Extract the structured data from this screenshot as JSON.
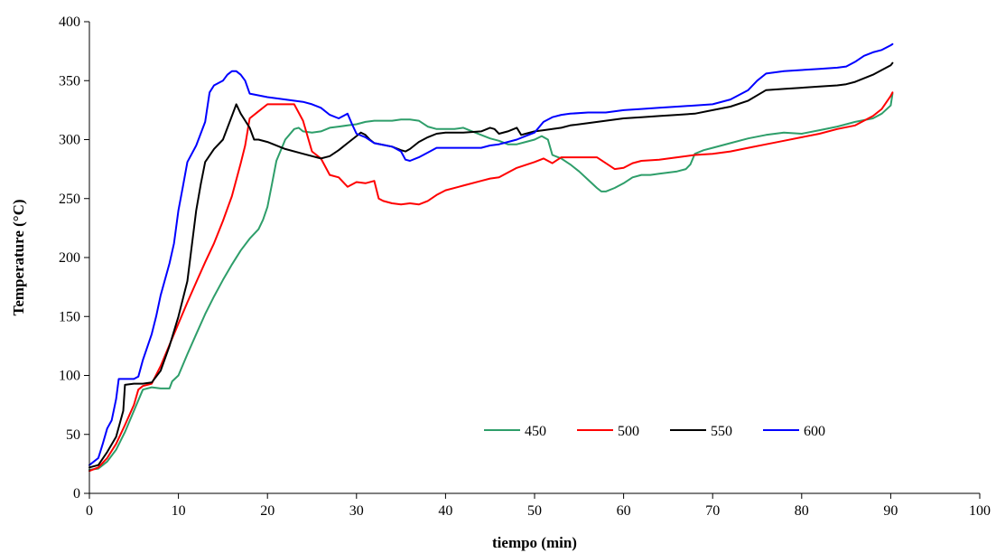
{
  "chart_data": {
    "type": "line",
    "title": "",
    "xlabel": "tiempo (min)",
    "ylabel": "Temperature (°C)",
    "xlim": [
      0,
      100
    ],
    "ylim": [
      0,
      400
    ],
    "xticks": [
      "0",
      "10",
      "20",
      "30",
      "40",
      "50",
      "60",
      "70",
      "80",
      "90",
      "100"
    ],
    "yticks": [
      "0",
      "50",
      "100",
      "150",
      "200",
      "250",
      "300",
      "350",
      "400"
    ],
    "grid": false,
    "legend_position": "lower-right",
    "series": [
      {
        "name": "450",
        "color": "#2e9e6a",
        "points": [
          [
            0,
            20
          ],
          [
            1,
            21
          ],
          [
            2,
            27
          ],
          [
            3,
            37
          ],
          [
            4,
            52
          ],
          [
            5,
            70
          ],
          [
            6,
            88
          ],
          [
            7,
            90
          ],
          [
            8,
            89
          ],
          [
            9,
            89
          ],
          [
            9.3,
            95
          ],
          [
            10,
            100
          ],
          [
            11,
            118
          ],
          [
            12,
            135
          ],
          [
            13,
            152
          ],
          [
            14,
            167
          ],
          [
            15,
            181
          ],
          [
            16,
            194
          ],
          [
            17,
            206
          ],
          [
            18,
            216
          ],
          [
            19,
            224
          ],
          [
            19.5,
            232
          ],
          [
            20,
            243
          ],
          [
            20.5,
            262
          ],
          [
            21,
            282
          ],
          [
            22,
            300
          ],
          [
            23,
            309
          ],
          [
            23.5,
            310
          ],
          [
            24,
            307
          ],
          [
            25,
            306
          ],
          [
            26,
            307
          ],
          [
            27,
            310
          ],
          [
            28,
            311
          ],
          [
            29,
            312
          ],
          [
            30,
            313
          ],
          [
            31,
            315
          ],
          [
            32,
            316
          ],
          [
            34,
            316
          ],
          [
            35,
            317
          ],
          [
            36,
            317
          ],
          [
            37,
            316
          ],
          [
            38,
            311
          ],
          [
            39,
            309
          ],
          [
            40,
            309
          ],
          [
            41,
            309
          ],
          [
            42,
            310
          ],
          [
            43,
            307
          ],
          [
            44,
            304
          ],
          [
            45,
            301
          ],
          [
            46,
            299
          ],
          [
            47,
            296
          ],
          [
            48,
            296
          ],
          [
            49,
            298
          ],
          [
            50,
            300
          ],
          [
            50.8,
            303
          ],
          [
            51.5,
            300
          ],
          [
            52,
            287
          ],
          [
            53,
            284
          ],
          [
            54,
            279
          ],
          [
            55,
            273
          ],
          [
            56,
            266
          ],
          [
            57,
            259
          ],
          [
            57.5,
            256
          ],
          [
            58,
            256
          ],
          [
            59,
            259
          ],
          [
            60,
            263
          ],
          [
            61,
            268
          ],
          [
            62,
            270
          ],
          [
            63,
            270
          ],
          [
            64,
            271
          ],
          [
            65,
            272
          ],
          [
            66,
            273
          ],
          [
            67,
            275
          ],
          [
            67.5,
            279
          ],
          [
            68,
            288
          ],
          [
            69,
            291
          ],
          [
            70,
            293
          ],
          [
            72,
            297
          ],
          [
            74,
            301
          ],
          [
            76,
            304
          ],
          [
            78,
            306
          ],
          [
            80,
            305
          ],
          [
            82,
            308
          ],
          [
            84,
            311
          ],
          [
            86,
            315
          ],
          [
            88,
            318
          ],
          [
            89,
            322
          ],
          [
            90,
            329
          ],
          [
            90.2,
            339
          ]
        ]
      },
      {
        "name": "500",
        "color": "#ff0000",
        "points": [
          [
            0,
            19
          ],
          [
            1,
            22
          ],
          [
            2,
            30
          ],
          [
            3,
            42
          ],
          [
            4,
            58
          ],
          [
            5,
            75
          ],
          [
            5.5,
            88
          ],
          [
            6,
            91
          ],
          [
            7,
            93
          ],
          [
            8,
            108
          ],
          [
            9,
            126
          ],
          [
            10,
            144
          ],
          [
            11,
            162
          ],
          [
            12,
            179
          ],
          [
            13,
            196
          ],
          [
            14,
            212
          ],
          [
            15,
            231
          ],
          [
            16,
            252
          ],
          [
            17,
            280
          ],
          [
            17.5,
            295
          ],
          [
            18,
            318
          ],
          [
            19,
            324
          ],
          [
            20,
            330
          ],
          [
            21,
            330
          ],
          [
            22,
            330
          ],
          [
            23,
            330
          ],
          [
            24,
            316
          ],
          [
            25,
            290
          ],
          [
            26,
            284
          ],
          [
            27,
            270
          ],
          [
            28,
            268
          ],
          [
            29,
            260
          ],
          [
            30,
            264
          ],
          [
            31,
            263
          ],
          [
            32,
            265
          ],
          [
            32.5,
            250
          ],
          [
            33,
            248
          ],
          [
            34,
            246
          ],
          [
            35,
            245
          ],
          [
            36,
            246
          ],
          [
            37,
            245
          ],
          [
            38,
            248
          ],
          [
            39,
            253
          ],
          [
            40,
            257
          ],
          [
            42,
            261
          ],
          [
            44,
            265
          ],
          [
            45,
            267
          ],
          [
            46,
            268
          ],
          [
            47,
            272
          ],
          [
            48,
            276
          ],
          [
            50,
            281
          ],
          [
            51,
            284
          ],
          [
            52,
            280
          ],
          [
            53,
            285
          ],
          [
            55,
            285
          ],
          [
            57,
            285
          ],
          [
            58,
            280
          ],
          [
            59,
            275
          ],
          [
            60,
            276
          ],
          [
            61,
            280
          ],
          [
            62,
            282
          ],
          [
            64,
            283
          ],
          [
            66,
            285
          ],
          [
            68,
            287
          ],
          [
            70,
            288
          ],
          [
            72,
            290
          ],
          [
            74,
            293
          ],
          [
            76,
            296
          ],
          [
            78,
            299
          ],
          [
            80,
            302
          ],
          [
            82,
            305
          ],
          [
            84,
            309
          ],
          [
            86,
            312
          ],
          [
            88,
            320
          ],
          [
            89,
            326
          ],
          [
            90,
            337
          ],
          [
            90.2,
            340
          ]
        ]
      },
      {
        "name": "550",
        "color": "#000000",
        "points": [
          [
            0,
            22
          ],
          [
            1,
            24
          ],
          [
            2,
            35
          ],
          [
            3,
            48
          ],
          [
            3.8,
            70
          ],
          [
            4,
            92
          ],
          [
            5,
            93
          ],
          [
            6,
            93
          ],
          [
            7,
            94
          ],
          [
            8,
            104
          ],
          [
            9,
            125
          ],
          [
            10,
            150
          ],
          [
            11,
            180
          ],
          [
            11.5,
            210
          ],
          [
            12,
            240
          ],
          [
            12.5,
            262
          ],
          [
            13,
            281
          ],
          [
            14,
            292
          ],
          [
            15,
            300
          ],
          [
            16,
            320
          ],
          [
            16.5,
            330
          ],
          [
            17,
            322
          ],
          [
            18,
            310
          ],
          [
            18.5,
            300
          ],
          [
            19,
            300
          ],
          [
            20,
            298
          ],
          [
            22,
            292
          ],
          [
            24,
            288
          ],
          [
            26,
            284
          ],
          [
            27,
            286
          ],
          [
            28,
            291
          ],
          [
            29,
            297
          ],
          [
            30,
            303
          ],
          [
            30.5,
            306
          ],
          [
            31,
            304
          ],
          [
            31.5,
            300
          ],
          [
            32,
            297
          ],
          [
            34,
            294
          ],
          [
            35,
            291
          ],
          [
            35.5,
            290
          ],
          [
            36,
            292
          ],
          [
            37,
            298
          ],
          [
            38,
            302
          ],
          [
            39,
            305
          ],
          [
            40,
            306
          ],
          [
            42,
            306
          ],
          [
            44,
            307
          ],
          [
            45,
            310
          ],
          [
            45.5,
            309
          ],
          [
            46,
            305
          ],
          [
            47,
            307
          ],
          [
            48,
            310
          ],
          [
            48.5,
            304
          ],
          [
            49,
            305
          ],
          [
            50,
            307
          ],
          [
            51,
            308
          ],
          [
            52,
            309
          ],
          [
            53,
            310
          ],
          [
            54,
            312
          ],
          [
            56,
            314
          ],
          [
            58,
            316
          ],
          [
            60,
            318
          ],
          [
            62,
            319
          ],
          [
            64,
            320
          ],
          [
            66,
            321
          ],
          [
            68,
            322
          ],
          [
            70,
            325
          ],
          [
            72,
            328
          ],
          [
            74,
            333
          ],
          [
            76,
            342
          ],
          [
            78,
            343
          ],
          [
            80,
            344
          ],
          [
            82,
            345
          ],
          [
            84,
            346
          ],
          [
            85,
            347
          ],
          [
            86,
            349
          ],
          [
            88,
            355
          ],
          [
            89,
            359
          ],
          [
            90,
            363
          ],
          [
            90.2,
            365
          ]
        ]
      },
      {
        "name": "600",
        "color": "#0000ff",
        "points": [
          [
            0,
            24
          ],
          [
            1,
            30
          ],
          [
            1.5,
            42
          ],
          [
            2,
            55
          ],
          [
            2.5,
            62
          ],
          [
            3,
            80
          ],
          [
            3.3,
            97
          ],
          [
            4,
            97
          ],
          [
            5,
            97
          ],
          [
            5.5,
            99
          ],
          [
            6,
            113
          ],
          [
            7,
            135
          ],
          [
            7.5,
            150
          ],
          [
            8,
            168
          ],
          [
            9,
            195
          ],
          [
            9.5,
            212
          ],
          [
            10,
            240
          ],
          [
            10.5,
            260
          ],
          [
            11,
            281
          ],
          [
            12,
            295
          ],
          [
            13,
            315
          ],
          [
            13.5,
            340
          ],
          [
            14,
            346
          ],
          [
            15,
            350
          ],
          [
            15.5,
            355
          ],
          [
            16,
            358
          ],
          [
            16.5,
            358
          ],
          [
            17,
            355
          ],
          [
            17.5,
            350
          ],
          [
            18,
            339
          ],
          [
            20,
            336
          ],
          [
            22,
            334
          ],
          [
            24,
            332
          ],
          [
            25,
            330
          ],
          [
            26,
            327
          ],
          [
            27,
            321
          ],
          [
            28,
            318
          ],
          [
            29,
            322
          ],
          [
            29.5,
            313
          ],
          [
            30,
            305
          ],
          [
            31,
            302
          ],
          [
            32,
            297
          ],
          [
            34,
            294
          ],
          [
            35,
            290
          ],
          [
            35.5,
            283
          ],
          [
            36,
            282
          ],
          [
            37,
            285
          ],
          [
            38,
            289
          ],
          [
            39,
            293
          ],
          [
            40,
            293
          ],
          [
            42,
            293
          ],
          [
            44,
            293
          ],
          [
            45,
            295
          ],
          [
            46,
            296
          ],
          [
            47,
            298
          ],
          [
            48,
            300
          ],
          [
            49,
            303
          ],
          [
            50,
            306
          ],
          [
            51,
            315
          ],
          [
            52,
            319
          ],
          [
            53,
            321
          ],
          [
            54,
            322
          ],
          [
            56,
            323
          ],
          [
            58,
            323
          ],
          [
            60,
            325
          ],
          [
            62,
            326
          ],
          [
            64,
            327
          ],
          [
            66,
            328
          ],
          [
            68,
            329
          ],
          [
            70,
            330
          ],
          [
            72,
            334
          ],
          [
            74,
            342
          ],
          [
            75,
            350
          ],
          [
            76,
            356
          ],
          [
            78,
            358
          ],
          [
            80,
            359
          ],
          [
            82,
            360
          ],
          [
            84,
            361
          ],
          [
            85,
            362
          ],
          [
            86,
            366
          ],
          [
            87,
            371
          ],
          [
            88,
            374
          ],
          [
            89,
            376
          ],
          [
            90,
            380
          ],
          [
            90.2,
            381
          ]
        ]
      }
    ]
  }
}
